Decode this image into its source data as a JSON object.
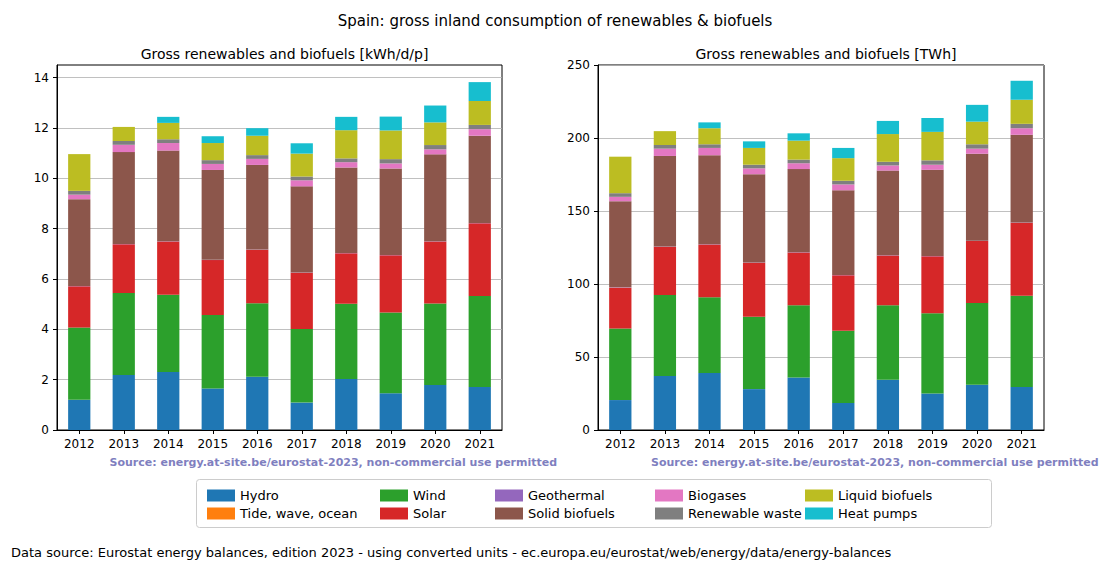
{
  "title": "Spain: gross inland consumption of renewables & biofuels",
  "footer": "Data source: Eurostat energy balances, edition 2023 - using converted units - ec.europa.eu/eurostat/web/energy/data/energy-balances",
  "chart_data": [
    {
      "type": "bar",
      "title": "Gross renewables and biofuels [kWh/d/p]",
      "source": "Source: energy.at-site.be/eurostat-2023, non-commercial use permitted",
      "stacked": true,
      "grid": true,
      "legend": "bottom",
      "categories": [
        "2012",
        "2013",
        "2014",
        "2015",
        "2016",
        "2017",
        "2018",
        "2019",
        "2020",
        "2021"
      ],
      "ylim": [
        0,
        14.5
      ],
      "yticks": [
        0,
        2,
        4,
        6,
        8,
        10,
        12,
        14
      ],
      "series": [
        {
          "name": "Hydro",
          "color": "#1f77b4",
          "values": [
            1.2,
            2.18,
            2.3,
            1.65,
            2.12,
            1.09,
            2.03,
            1.46,
            1.79,
            1.71
          ]
        },
        {
          "name": "Tide, wave, ocean",
          "color": "#ff7f0e",
          "values": [
            0,
            0,
            0,
            0,
            0,
            0,
            0,
            0,
            0,
            0
          ]
        },
        {
          "name": "Wind",
          "color": "#2ca02c",
          "values": [
            2.87,
            3.26,
            3.07,
            2.92,
            2.92,
            2.92,
            2.99,
            3.21,
            3.24,
            3.61
          ]
        },
        {
          "name": "Solar",
          "color": "#d62728",
          "values": [
            1.64,
            1.94,
            2.12,
            2.18,
            2.12,
            2.24,
            2.0,
            2.27,
            2.46,
            2.89
          ]
        },
        {
          "name": "Geothermal",
          "color": "#9467bd",
          "values": [
            0.01,
            0.01,
            0.01,
            0.01,
            0.01,
            0.01,
            0.01,
            0.01,
            0.01,
            0.01
          ]
        },
        {
          "name": "Solid biofuels",
          "color": "#8c564b",
          "values": [
            3.45,
            3.65,
            3.6,
            3.57,
            3.36,
            3.42,
            3.4,
            3.44,
            3.45,
            3.47
          ]
        },
        {
          "name": "Biogases",
          "color": "#e377c2",
          "values": [
            0.18,
            0.29,
            0.3,
            0.24,
            0.24,
            0.24,
            0.21,
            0.2,
            0.2,
            0.26
          ]
        },
        {
          "name": "Renewable waste",
          "color": "#7f7f7f",
          "values": [
            0.15,
            0.15,
            0.15,
            0.15,
            0.15,
            0.15,
            0.15,
            0.17,
            0.17,
            0.17
          ]
        },
        {
          "name": "Liquid biofuels",
          "color": "#bcbd22",
          "values": [
            1.46,
            0.56,
            0.65,
            0.68,
            0.77,
            0.91,
            1.12,
            1.14,
            0.9,
            0.95
          ]
        },
        {
          "name": "Heat pumps",
          "color": "#17becf",
          "values": [
            0,
            0,
            0.24,
            0.27,
            0.3,
            0.41,
            0.53,
            0.55,
            0.67,
            0.75
          ]
        }
      ]
    },
    {
      "type": "bar",
      "title": "Gross renewables and biofuels [TWh]",
      "source": "Source: energy.at-site.be/eurostat-2023, non-commercial use permitted",
      "stacked": true,
      "grid": true,
      "legend": "bottom",
      "categories": [
        "2012",
        "2013",
        "2014",
        "2015",
        "2016",
        "2017",
        "2018",
        "2019",
        "2020",
        "2021"
      ],
      "ylim": [
        0,
        250
      ],
      "yticks": [
        0,
        50,
        100,
        150,
        200,
        250
      ],
      "series": [
        {
          "name": "Hydro",
          "color": "#1f77b4",
          "values": [
            20.5,
            37,
            39,
            28,
            36,
            18.5,
            34.5,
            25,
            31,
            29.5
          ]
        },
        {
          "name": "Tide, wave, ocean",
          "color": "#ff7f0e",
          "values": [
            0,
            0,
            0,
            0,
            0,
            0,
            0,
            0,
            0,
            0
          ]
        },
        {
          "name": "Wind",
          "color": "#2ca02c",
          "values": [
            49,
            55.5,
            52,
            49.5,
            49.5,
            49.5,
            51,
            55,
            56,
            62.5
          ]
        },
        {
          "name": "Solar",
          "color": "#d62728",
          "values": [
            28,
            33,
            36,
            37,
            36,
            38,
            34,
            39,
            42.5,
            50
          ]
        },
        {
          "name": "Geothermal",
          "color": "#9467bd",
          "values": [
            0.2,
            0.2,
            0.2,
            0.2,
            0.2,
            0.2,
            0.2,
            0.2,
            0.2,
            0.2
          ]
        },
        {
          "name": "Solid biofuels",
          "color": "#8c564b",
          "values": [
            59,
            62,
            61,
            60.5,
            57,
            58,
            58,
            59,
            59.5,
            60
          ]
        },
        {
          "name": "Biogases",
          "color": "#e377c2",
          "values": [
            3,
            5,
            5,
            4,
            4,
            4,
            3.5,
            3.5,
            3.5,
            4.5
          ]
        },
        {
          "name": "Renewable waste",
          "color": "#7f7f7f",
          "values": [
            2.5,
            2.5,
            2.5,
            2.5,
            2.5,
            2.5,
            2.5,
            3,
            3,
            3
          ]
        },
        {
          "name": "Liquid biofuels",
          "color": "#bcbd22",
          "values": [
            25,
            9.5,
            11,
            11.5,
            13,
            15.5,
            19,
            19.5,
            15.5,
            16.5
          ]
        },
        {
          "name": "Heat pumps",
          "color": "#17becf",
          "values": [
            0,
            0,
            4,
            4.5,
            5,
            7,
            9,
            9.5,
            11.5,
            13
          ]
        }
      ]
    }
  ]
}
